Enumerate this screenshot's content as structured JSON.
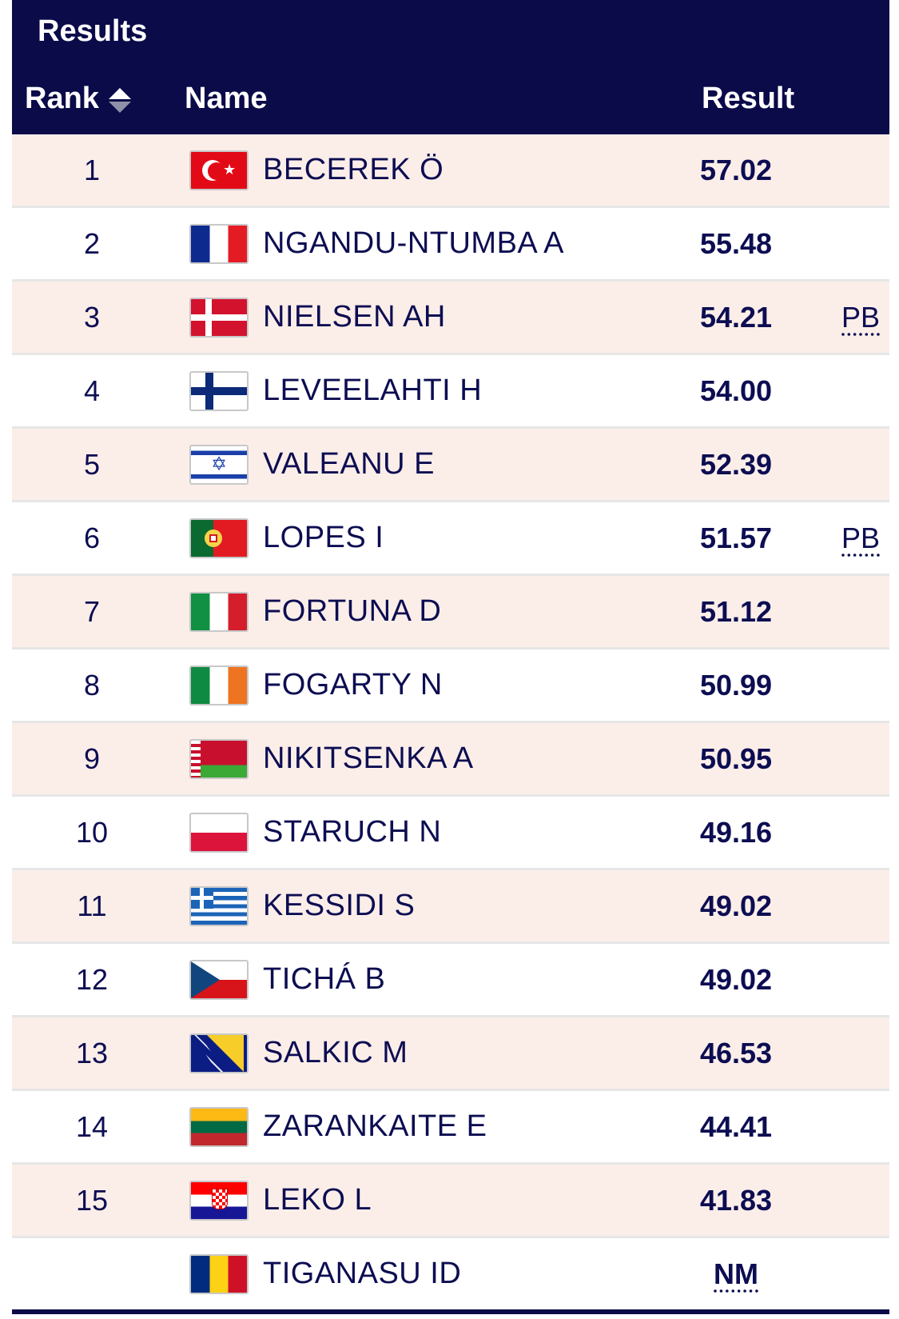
{
  "header": {
    "title": "Results",
    "columns": {
      "rank": "Rank",
      "name": "Name",
      "result": "Result"
    }
  },
  "rows": [
    {
      "rank": "1",
      "flag": "turkey-flag-icon",
      "name": "BECEREK Ö",
      "result": "57.02",
      "note": ""
    },
    {
      "rank": "2",
      "flag": "france-flag-icon",
      "name": "NGANDU-NTUMBA A",
      "result": "55.48",
      "note": ""
    },
    {
      "rank": "3",
      "flag": "denmark-flag-icon",
      "name": "NIELSEN AH",
      "result": "54.21",
      "note": "PB"
    },
    {
      "rank": "4",
      "flag": "finland-flag-icon",
      "name": "LEVEELAHTI H",
      "result": "54.00",
      "note": ""
    },
    {
      "rank": "5",
      "flag": "israel-flag-icon",
      "name": "VALEANU E",
      "result": "52.39",
      "note": ""
    },
    {
      "rank": "6",
      "flag": "portugal-flag-icon",
      "name": "LOPES I",
      "result": "51.57",
      "note": "PB"
    },
    {
      "rank": "7",
      "flag": "italy-flag-icon",
      "name": "FORTUNA D",
      "result": "51.12",
      "note": ""
    },
    {
      "rank": "8",
      "flag": "ireland-flag-icon",
      "name": "FOGARTY N",
      "result": "50.99",
      "note": ""
    },
    {
      "rank": "9",
      "flag": "belarus-flag-icon",
      "name": "NIKITSENKA A",
      "result": "50.95",
      "note": ""
    },
    {
      "rank": "10",
      "flag": "poland-flag-icon",
      "name": "STARUCH N",
      "result": "49.16",
      "note": ""
    },
    {
      "rank": "11",
      "flag": "greece-flag-icon",
      "name": "KESSIDI S",
      "result": "49.02",
      "note": ""
    },
    {
      "rank": "12",
      "flag": "czechia-flag-icon",
      "name": "TICHÁ B",
      "result": "49.02",
      "note": ""
    },
    {
      "rank": "13",
      "flag": "bosnia-flag-icon",
      "name": "SALKIC M",
      "result": "46.53",
      "note": ""
    },
    {
      "rank": "14",
      "flag": "lithuania-flag-icon",
      "name": "ZARANKAITE E",
      "result": "44.41",
      "note": ""
    },
    {
      "rank": "15",
      "flag": "croatia-flag-icon",
      "name": "LEKO L",
      "result": "41.83",
      "note": ""
    },
    {
      "rank": "",
      "flag": "romania-flag-icon",
      "name": "TIGANASU ID",
      "result": "NM",
      "note": ""
    }
  ],
  "colors": {
    "header_bg": "#0b0b4a",
    "row_alt_bg": "#fbeee9",
    "text": "#0d0d52"
  }
}
